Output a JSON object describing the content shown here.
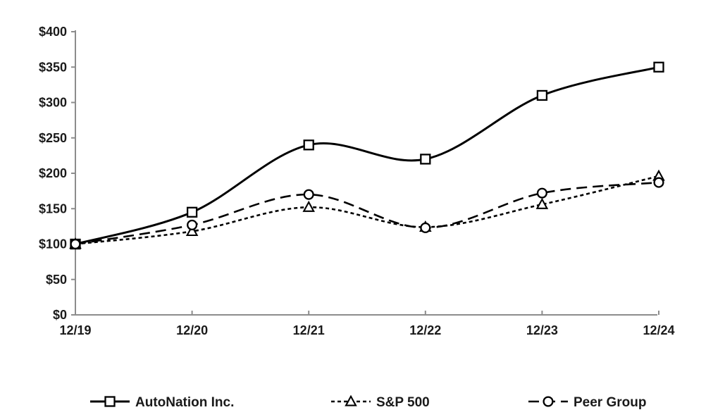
{
  "chart_data": {
    "type": "line",
    "title": "",
    "x_tick_labels": [
      "12/19",
      "12/20",
      "12/21",
      "12/22",
      "12/23",
      "12/24"
    ],
    "y_tick_labels": [
      "$0",
      "$50",
      "$100",
      "$150",
      "$200",
      "$250",
      "$300",
      "$350",
      "$400"
    ],
    "y_axis": {
      "min": 0,
      "max": 400,
      "step": 50,
      "unit": "$"
    },
    "grid": false,
    "legend_position": "bottom",
    "series": [
      {
        "name": "AutoNation Inc.",
        "line_style": "solid",
        "marker": "square",
        "values": [
          100,
          145,
          240,
          220,
          310,
          350
        ]
      },
      {
        "name": "S&P 500",
        "line_style": "short-dash",
        "marker": "triangle",
        "values": [
          100,
          118,
          152,
          124,
          156,
          196
        ]
      },
      {
        "name": "Peer Group",
        "line_style": "long-dash",
        "marker": "circle",
        "values": [
          100,
          127,
          170,
          123,
          172,
          187
        ]
      }
    ],
    "colors": {
      "series_stroke": "#000000",
      "marker_fill": "#ffffff",
      "axis": "#8c8c8c",
      "label_text": "#1a1a1a",
      "background": "#ffffff"
    }
  }
}
